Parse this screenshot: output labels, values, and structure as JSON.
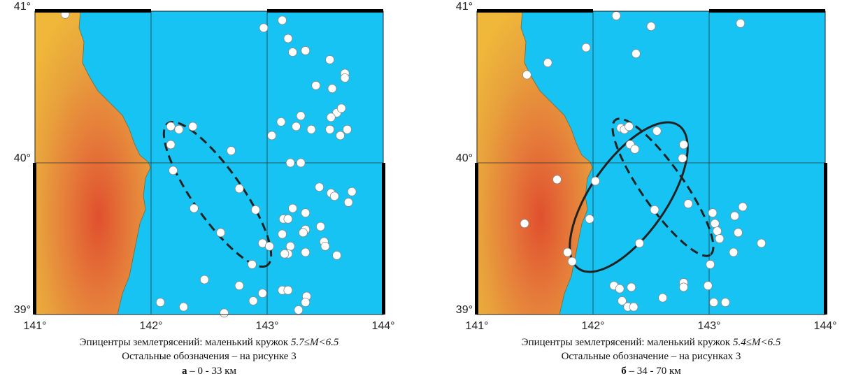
{
  "chart_data": [
    {
      "type": "scatter",
      "color": "#ffffff",
      "grid": true,
      "xlim": [
        141,
        144
      ],
      "ylim": [
        39,
        41
      ],
      "xticks": [
        {
          "value": 141,
          "label": "141°"
        },
        {
          "value": 142,
          "label": "142°"
        },
        {
          "value": 143,
          "label": "143°"
        },
        {
          "value": 144,
          "label": "144°"
        }
      ],
      "yticks": [
        {
          "value": 39,
          "label": "39°"
        },
        {
          "value": 40,
          "label": "40°"
        },
        {
          "value": 41,
          "label": "41°"
        }
      ],
      "x": [
        141.26,
        142.97,
        143.13,
        143.18,
        143.22,
        143.33,
        143.54,
        143.67,
        143.67,
        143.42,
        143.56,
        143.12,
        143.29,
        143.25,
        143.38,
        143.6,
        143.55,
        143.64,
        143.54,
        143.63,
        143.69,
        143.04,
        142.17,
        142.24,
        142.36,
        142.17,
        142.69,
        142.19,
        143.2,
        143.29,
        142.76,
        143.45,
        143.55,
        143.58,
        143.73,
        143.7,
        142.37,
        142.9,
        143.22,
        143.33,
        143.14,
        143.18,
        143.46,
        143.33,
        143.31,
        142.6,
        143.13,
        143.49,
        143.5,
        142.96,
        143.02,
        143.2,
        143.18,
        143.33,
        143.15,
        143.6,
        142.87,
        142.46,
        142.76,
        143.13,
        143.18,
        142.96,
        142.88,
        143.34,
        143.33,
        142.08,
        142.28,
        143.27,
        142.63
      ],
      "y": [
        40.98,
        40.89,
        40.94,
        40.82,
        40.73,
        40.74,
        40.68,
        40.59,
        40.56,
        40.51,
        40.49,
        40.27,
        40.31,
        40.24,
        40.22,
        40.33,
        40.3,
        40.36,
        40.22,
        40.18,
        40.22,
        40.18,
        40.24,
        40.22,
        40.24,
        40.12,
        40.08,
        39.95,
        40.0,
        40.0,
        39.83,
        39.84,
        39.8,
        39.78,
        39.81,
        39.74,
        39.7,
        39.69,
        39.7,
        39.67,
        39.63,
        39.63,
        39.58,
        39.56,
        39.54,
        39.54,
        39.53,
        39.48,
        39.45,
        39.47,
        39.45,
        39.45,
        39.4,
        39.41,
        39.4,
        39.39,
        39.33,
        39.23,
        39.19,
        39.16,
        39.16,
        39.14,
        39.09,
        39.12,
        39.08,
        39.08,
        39.05,
        39.03,
        39.01
      ],
      "caption_line1": "Эпицентры землетрясений: маленький кружок",
      "caption_magnitude": "5.7≤M<6.5",
      "caption_line2": "Остальные обозначения – на рисунке 3",
      "panel_letter": "а",
      "panel_depth": "– 0 - 33 км"
    },
    {
      "type": "scatter",
      "color": "#ffffff",
      "grid": true,
      "xlim": [
        141,
        144
      ],
      "ylim": [
        39,
        41
      ],
      "xticks": [
        {
          "value": 141,
          "label": "141°"
        },
        {
          "value": 142,
          "label": "142°"
        },
        {
          "value": 143,
          "label": "143°"
        },
        {
          "value": 144,
          "label": "144°"
        }
      ],
      "yticks": [
        {
          "value": 39,
          "label": "39°"
        },
        {
          "value": 40,
          "label": "40°"
        },
        {
          "value": 41,
          "label": "41°"
        }
      ],
      "x": [
        141.61,
        141.94,
        142.2,
        142.5,
        142.37,
        143.27,
        141.43,
        142.24,
        142.27,
        142.31,
        142.55,
        142.32,
        142.36,
        142.78,
        142.77,
        141.69,
        142.02,
        142.82,
        143.03,
        143.29,
        143.05,
        143.22,
        142.53,
        143.07,
        143.09,
        143.25,
        143.45,
        142.4,
        141.97,
        141.41,
        141.78,
        141.82,
        143.01,
        143.21,
        142.18,
        142.23,
        142.33,
        142.78,
        142.78,
        142.99,
        142.25,
        143.04,
        143.14,
        142.3,
        142.35,
        142.6
      ],
      "y": [
        40.66,
        40.76,
        40.97,
        40.9,
        40.72,
        40.92,
        40.58,
        40.23,
        40.22,
        40.24,
        40.21,
        40.12,
        40.09,
        40.12,
        40.03,
        39.89,
        39.88,
        39.73,
        39.67,
        39.71,
        39.6,
        39.65,
        39.69,
        39.55,
        39.5,
        39.54,
        39.47,
        39.47,
        39.63,
        39.6,
        39.41,
        39.35,
        39.33,
        39.41,
        39.19,
        39.17,
        39.18,
        39.21,
        39.18,
        39.19,
        39.09,
        39.08,
        39.08,
        39.05,
        39.05,
        39.11
      ],
      "caption_line1": "Эпицентры землетрясений: маленький кружок",
      "caption_magnitude": "5.4≤M<6.5",
      "caption_line2": "Остальные обозначение – на рисунках 3",
      "panel_letter": "б",
      "panel_depth": "– 34 - 70 км"
    }
  ]
}
